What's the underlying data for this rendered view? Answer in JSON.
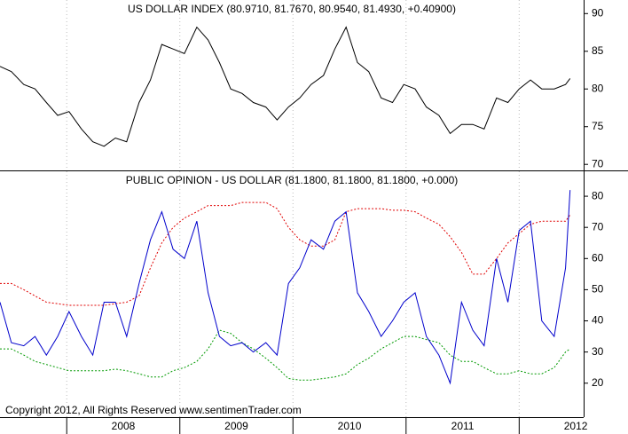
{
  "chart_data": [
    {
      "type": "line",
      "title": "US DOLLAR INDEX (80.9710, 81.7670, 80.9540, 81.4930, +0.40900)",
      "x": [
        2007.41,
        2007.51,
        2007.62,
        2007.72,
        2007.82,
        2007.92,
        2008.02,
        2008.13,
        2008.23,
        2008.33,
        2008.43,
        2008.53,
        2008.64,
        2008.74,
        2008.84,
        2008.94,
        2009.04,
        2009.15,
        2009.25,
        2009.35,
        2009.45,
        2009.55,
        2009.65,
        2009.76,
        2009.86,
        2009.96,
        2010.06,
        2010.16,
        2010.27,
        2010.37,
        2010.47,
        2010.57,
        2010.67,
        2010.78,
        2010.88,
        2010.98,
        2011.08,
        2011.18,
        2011.29,
        2011.39,
        2011.49,
        2011.59,
        2011.69,
        2011.8,
        2011.9,
        2012.0,
        2012.1,
        2012.2,
        2012.31,
        2012.41,
        2012.45
      ],
      "series": [
        {
          "color": "#000000",
          "dash": false,
          "values": [
            83,
            82.3,
            80.6,
            80,
            78.2,
            76.5,
            77,
            74.7,
            73,
            72.4,
            73.5,
            73,
            78.2,
            81.2,
            85.9,
            85.3,
            84.7,
            88.2,
            86.5,
            83.5,
            80,
            79.4,
            78.2,
            77.6,
            75.9,
            77.6,
            78.8,
            80.6,
            81.8,
            85.3,
            88.2,
            83.5,
            82.3,
            78.8,
            78.2,
            80.6,
            80,
            77.6,
            76.5,
            74.1,
            75.3,
            75.3,
            74.7,
            78.8,
            78.2,
            80,
            81.2,
            80,
            80,
            80.6,
            81.4
          ]
        }
      ],
      "xlim": [
        2007.41,
        2012.57
      ],
      "ylim": [
        69.2,
        91.8
      ],
      "yticks": [
        70,
        75,
        80,
        85,
        90
      ],
      "xticks": [
        2008,
        2009,
        2010,
        2011,
        2012
      ],
      "grid": true
    },
    {
      "type": "line",
      "title": "PUBLIC OPINION - US DOLLAR (81.1800, 81.1800, 81.1800, +0.000)",
      "annotation": "Copyright 2012, All Rights Reserved  www.sentimenTrader.com",
      "x": [
        2007.41,
        2007.51,
        2007.62,
        2007.72,
        2007.82,
        2007.92,
        2008.02,
        2008.13,
        2008.23,
        2008.33,
        2008.43,
        2008.53,
        2008.64,
        2008.74,
        2008.84,
        2008.94,
        2009.04,
        2009.15,
        2009.25,
        2009.35,
        2009.45,
        2009.55,
        2009.65,
        2009.76,
        2009.86,
        2009.96,
        2010.06,
        2010.16,
        2010.27,
        2010.37,
        2010.47,
        2010.57,
        2010.67,
        2010.78,
        2010.88,
        2010.98,
        2011.08,
        2011.18,
        2011.29,
        2011.39,
        2011.49,
        2011.59,
        2011.69,
        2011.8,
        2011.9,
        2012.0,
        2012.1,
        2012.2,
        2012.31,
        2012.41,
        2012.45
      ],
      "series": [
        {
          "color": "#e00000",
          "dash": true,
          "values": [
            52,
            52,
            50,
            48,
            46,
            45.5,
            45,
            45,
            45,
            45,
            45.5,
            46,
            48,
            57,
            65,
            70,
            73,
            75,
            77,
            77,
            77,
            78,
            78,
            78,
            76,
            70,
            66,
            64,
            64,
            66,
            75,
            76,
            76,
            76,
            75.5,
            75.5,
            75,
            73,
            71,
            67,
            62,
            55,
            55,
            60,
            65,
            68,
            71,
            72,
            72,
            72,
            74
          ]
        },
        {
          "color": "#009900",
          "dash": true,
          "values": [
            31,
            31,
            29,
            27,
            26,
            25,
            24,
            24,
            24,
            24,
            24.5,
            24,
            23,
            22,
            22,
            24,
            25,
            27,
            31,
            37,
            36,
            33,
            31,
            28,
            25,
            21.5,
            21,
            21,
            21.5,
            22,
            23,
            26,
            28,
            31,
            33,
            35,
            35,
            34,
            33,
            29,
            27,
            27,
            25,
            23,
            23,
            24,
            23,
            23,
            25,
            30,
            31
          ]
        },
        {
          "color": "#0000cc",
          "dash": false,
          "values": [
            46,
            33,
            32,
            35,
            29,
            35,
            43,
            35,
            29,
            46,
            46,
            35,
            52,
            66,
            75,
            63,
            60,
            72,
            49,
            35,
            32,
            33,
            30,
            33,
            29,
            52,
            57,
            66,
            63,
            72,
            75,
            49,
            43,
            35,
            40,
            46,
            49,
            35,
            29,
            20,
            46,
            37,
            32,
            60,
            46,
            69,
            72,
            40,
            35,
            57,
            82
          ]
        }
      ],
      "xlim": [
        2007.41,
        2012.57
      ],
      "ylim": [
        9.1,
        88
      ],
      "yticks": [
        20,
        30,
        40,
        50,
        60,
        70,
        80
      ],
      "xticks": [
        2008,
        2009,
        2010,
        2011,
        2012
      ],
      "grid": true
    }
  ]
}
